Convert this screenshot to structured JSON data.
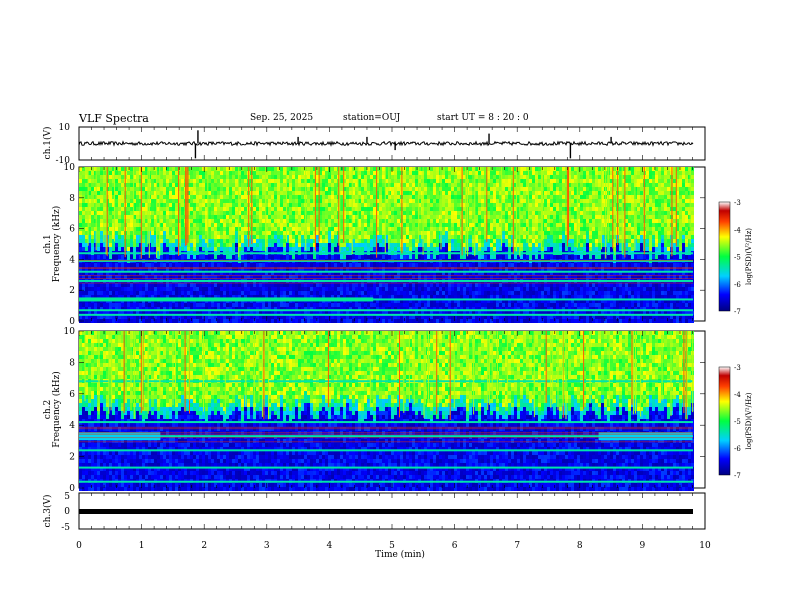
{
  "header": {
    "title": "VLF Spectra",
    "date": "Sep. 25, 2025",
    "station": "station=OUJ",
    "start_ut": "start  UT =   8 : 20 : 0"
  },
  "chart_data": [
    {
      "id": "ch1-waveform",
      "type": "line",
      "ylabel": "ch.1(V)",
      "ylim": [
        -10,
        10
      ],
      "yticks": [
        "10",
        "-10"
      ],
      "xlim": [
        0,
        10
      ],
      "baseline": 0,
      "spikes": [
        {
          "x": 1.86,
          "y": -9
        },
        {
          "x": 1.9,
          "y": 8
        },
        {
          "x": 3.5,
          "y": 4
        },
        {
          "x": 4.6,
          "y": 4
        },
        {
          "x": 5.05,
          "y": -4
        },
        {
          "x": 6.55,
          "y": 6
        },
        {
          "x": 7.85,
          "y": -9
        },
        {
          "x": 8.5,
          "y": 4
        }
      ]
    },
    {
      "id": "ch1-spectrogram",
      "type": "heatmap",
      "ylabel": "ch.1",
      "ylabel2": "Frequency (kHz)",
      "ylim": [
        0,
        10
      ],
      "yticks": [
        "0",
        "2",
        "4",
        "6",
        "8",
        "10"
      ],
      "xlim": [
        0,
        10
      ],
      "colorbar": {
        "label": "log(PSD)(V²/Hz)",
        "ticks": [
          "-3",
          "-4",
          "-5",
          "-6",
          "-7"
        ],
        "range": [
          -7,
          -3
        ]
      },
      "cutoff_khz": 5.3,
      "bands_khz": [
        0.4,
        0.7,
        1.4,
        2.6,
        3.2,
        3.9,
        4.4
      ],
      "strong_band_khz": 1.4,
      "strong_band_until_min": 4.7
    },
    {
      "id": "ch2-spectrogram",
      "type": "heatmap",
      "ylabel": "ch.2",
      "ylabel2": "Frequency (kHz)",
      "ylim": [
        0,
        10
      ],
      "yticks": [
        "0",
        "2",
        "4",
        "6",
        "8",
        "10"
      ],
      "xlim": [
        0,
        10
      ],
      "colorbar": {
        "label": "log(PSD)(V²/Hz)",
        "ticks": [
          "-3",
          "-4",
          "-5",
          "-6",
          "-7"
        ],
        "range": [
          -7,
          -3
        ]
      },
      "cutoff_khz": 5.6,
      "bands_khz": [
        0.4,
        1.3,
        2.4,
        3.3,
        4.2,
        6.8
      ],
      "strong_band_khz": 3.3,
      "strong_band_ranges_min": [
        [
          0,
          1.3
        ],
        [
          8.3,
          9.8
        ]
      ]
    },
    {
      "id": "ch3-waveform",
      "type": "line",
      "ylabel": "ch.3(V)",
      "ylim": [
        -5,
        5
      ],
      "yticks": [
        "5",
        "0",
        "-5"
      ],
      "xlim": [
        0,
        10
      ],
      "constant_value": 0,
      "xlabel": "Time (min)",
      "xticks": [
        "0",
        "1",
        "2",
        "3",
        "4",
        "5",
        "6",
        "7",
        "8",
        "9",
        "10"
      ]
    }
  ]
}
